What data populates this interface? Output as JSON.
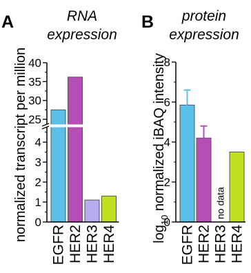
{
  "chart_data": [
    {
      "type": "bar",
      "panel_letter": "A",
      "title_lines": [
        "RNA",
        "expression"
      ],
      "ylabel": "normalized transcript per million",
      "categories": [
        "EGFR",
        "HER2",
        "HER3",
        "HER4"
      ],
      "values": [
        27.5,
        36.2,
        1.1,
        1.3
      ],
      "colors": [
        "#5bc0e8",
        "#b54fb5",
        "#b7acee",
        "#bfe021"
      ],
      "axis_break": true,
      "lower_range": [
        0,
        4.8
      ],
      "upper_range": [
        23,
        40
      ],
      "lower_ticks": [
        "0",
        "1",
        "2",
        "3",
        "4"
      ],
      "upper_ticks": [
        "25",
        "30",
        "35",
        "40"
      ]
    },
    {
      "type": "bar",
      "panel_letter": "B",
      "title_lines": [
        "protein",
        "expression"
      ],
      "ylabel_prefix": "log",
      "ylabel_subscript": "10",
      "ylabel_rest": " normalized iBAQ intensity",
      "categories": [
        "EGFR",
        "HER2",
        "HER3",
        "HER4"
      ],
      "values": [
        5.85,
        4.2,
        null,
        3.5
      ],
      "errors": [
        0.75,
        0.6,
        null,
        0
      ],
      "colors": [
        "#5bc0e8",
        "#b54fb5",
        "#b7acee",
        "#bfe021"
      ],
      "missing_label": "no data",
      "ylim": [
        0,
        8
      ],
      "y_ticks": [
        "0",
        "2",
        "4",
        "6",
        "8"
      ]
    }
  ]
}
